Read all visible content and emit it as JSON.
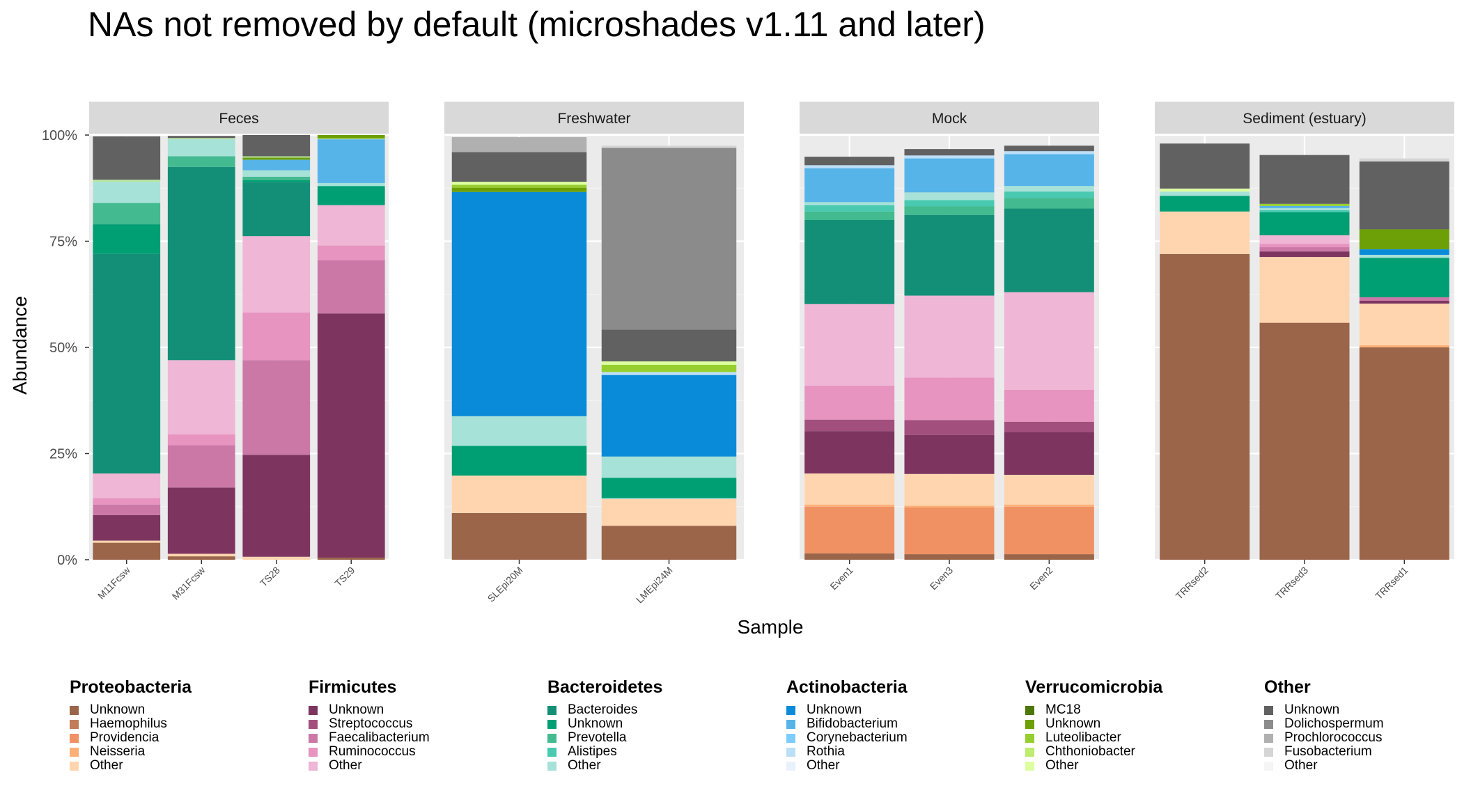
{
  "chart_data": {
    "type": "bar",
    "stacked": true,
    "title": "NAs not removed by default (microshades v1.11 and later)",
    "xlabel": "Sample",
    "ylabel": "Abundance",
    "ylim": [
      0,
      1
    ],
    "yticks": [
      "0%",
      "25%",
      "50%",
      "75%",
      "100%"
    ],
    "grid": true,
    "legend_position": "bottom",
    "facets": [
      {
        "label": "Feces",
        "samples": [
          {
            "name": "M11Fcsw",
            "segments": [
              {
                "c": "#9B6549",
                "v": 0.04
              },
              {
                "c": "#FFD5AF",
                "v": 0.005
              },
              {
                "c": "#7D3560",
                "v": 0.06
              },
              {
                "c": "#CB78A7",
                "v": 0.025
              },
              {
                "c": "#E794C0",
                "v": 0.015
              },
              {
                "c": "#EFB6D6",
                "v": 0.058
              },
              {
                "c": "#148F77",
                "v": 0.517
              },
              {
                "c": "#009E73",
                "v": 0.07
              },
              {
                "c": "#43BA8F",
                "v": 0.05
              },
              {
                "c": "#A7E2D8",
                "v": 0.05
              },
              {
                "c": "#B7E59F",
                "v": 0.005
              },
              {
                "c": "#616161",
                "v": 0.102
              }
            ]
          },
          {
            "name": "M31Fcsw",
            "segments": [
              {
                "c": "#9B6549",
                "v": 0.008
              },
              {
                "c": "#FFD5AF",
                "v": 0.006
              },
              {
                "c": "#7D3560",
                "v": 0.156
              },
              {
                "c": "#CB78A7",
                "v": 0.1
              },
              {
                "c": "#E794C0",
                "v": 0.025
              },
              {
                "c": "#EFB6D6",
                "v": 0.175
              },
              {
                "c": "#148F77",
                "v": 0.455
              },
              {
                "c": "#43BA8F",
                "v": 0.025
              },
              {
                "c": "#A7E2D8",
                "v": 0.04
              },
              {
                "c": "#B7E59F",
                "v": 0.003
              },
              {
                "c": "#616161",
                "v": 0.005
              }
            ]
          },
          {
            "name": "TS28",
            "segments": [
              {
                "c": "#FFD5AF",
                "v": 0.007
              },
              {
                "c": "#7D3560",
                "v": 0.24
              },
              {
                "c": "#CB78A7",
                "v": 0.223
              },
              {
                "c": "#E794C0",
                "v": 0.112
              },
              {
                "c": "#EFB6D6",
                "v": 0.18
              },
              {
                "c": "#148F77",
                "v": 0.127
              },
              {
                "c": "#009E73",
                "v": 0.005
              },
              {
                "c": "#43BA8F",
                "v": 0.008
              },
              {
                "c": "#A7E2D8",
                "v": 0.015
              },
              {
                "c": "#56B4E9",
                "v": 0.025
              },
              {
                "c": "#6D9F06",
                "v": 0.005
              },
              {
                "c": "#B7E59F",
                "v": 0.003
              },
              {
                "c": "#616161",
                "v": 0.05
              }
            ]
          },
          {
            "name": "TS29",
            "segments": [
              {
                "c": "#9B6549",
                "v": 0.005
              },
              {
                "c": "#7D3560",
                "v": 0.575
              },
              {
                "c": "#CB78A7",
                "v": 0.125
              },
              {
                "c": "#E794C0",
                "v": 0.035
              },
              {
                "c": "#EFB6D6",
                "v": 0.095
              },
              {
                "c": "#009E73",
                "v": 0.045
              },
              {
                "c": "#A7E2D8",
                "v": 0.007
              },
              {
                "c": "#56B4E9",
                "v": 0.103
              },
              {
                "c": "#B7E59F",
                "v": 0.002
              },
              {
                "c": "#6D9F06",
                "v": 0.008
              }
            ]
          }
        ]
      },
      {
        "label": "Freshwater",
        "samples": [
          {
            "name": "SLEpi20M",
            "segments": [
              {
                "c": "#9B6549",
                "v": 0.11
              },
              {
                "c": "#FFD5AF",
                "v": 0.088
              },
              {
                "c": "#009E73",
                "v": 0.07
              },
              {
                "c": "#A7E2D8",
                "v": 0.07
              },
              {
                "c": "#098BD9",
                "v": 0.528
              },
              {
                "c": "#6D9F06",
                "v": 0.01
              },
              {
                "c": "#97CE2F",
                "v": 0.007
              },
              {
                "c": "#DDFFA0",
                "v": 0.007
              },
              {
                "c": "#616161",
                "v": 0.07
              },
              {
                "c": "#B0B0B0",
                "v": 0.035
              }
            ]
          },
          {
            "name": "LMEpi24M",
            "segments": [
              {
                "c": "#9B6549",
                "v": 0.08
              },
              {
                "c": "#FFD5AF",
                "v": 0.063
              },
              {
                "c": "#A7E2D8",
                "v": 0.002
              },
              {
                "c": "#009E73",
                "v": 0.048
              },
              {
                "c": "#A7E2D8",
                "v": 0.05
              },
              {
                "c": "#098BD9",
                "v": 0.192
              },
              {
                "c": "#BCDFF8",
                "v": 0.007
              },
              {
                "c": "#97CE2F",
                "v": 0.017
              },
              {
                "c": "#DDFFA0",
                "v": 0.008
              },
              {
                "c": "#616161",
                "v": 0.075
              },
              {
                "c": "#8B8B8B",
                "v": 0.428
              },
              {
                "c": "#D5D5D5",
                "v": 0.005
              }
            ]
          }
        ]
      },
      {
        "label": "Mock",
        "samples": [
          {
            "name": "Even1",
            "segments": [
              {
                "c": "#9B6549",
                "v": 0.015
              },
              {
                "c": "#F09163",
                "v": 0.11
              },
              {
                "c": "#FCB076",
                "v": 0.005
              },
              {
                "c": "#FFD5AF",
                "v": 0.073
              },
              {
                "c": "#7D3560",
                "v": 0.1
              },
              {
                "c": "#A24F7D",
                "v": 0.027
              },
              {
                "c": "#E794C0",
                "v": 0.08
              },
              {
                "c": "#EFB6D6",
                "v": 0.192
              },
              {
                "c": "#148F77",
                "v": 0.198
              },
              {
                "c": "#43BA8F",
                "v": 0.02
              },
              {
                "c": "#48C9B0",
                "v": 0.015
              },
              {
                "c": "#A7E2D8",
                "v": 0.007
              },
              {
                "c": "#56B4E9",
                "v": 0.08
              },
              {
                "c": "#BCDFF8",
                "v": 0.007
              },
              {
                "c": "#616161",
                "v": 0.02
              }
            ]
          },
          {
            "name": "Even3",
            "segments": [
              {
                "c": "#9B6549",
                "v": 0.013
              },
              {
                "c": "#F09163",
                "v": 0.11
              },
              {
                "c": "#FCB076",
                "v": 0.004
              },
              {
                "c": "#FFD5AF",
                "v": 0.075
              },
              {
                "c": "#7D3560",
                "v": 0.092
              },
              {
                "c": "#A24F7D",
                "v": 0.035
              },
              {
                "c": "#E794C0",
                "v": 0.1
              },
              {
                "c": "#EFB6D6",
                "v": 0.193
              },
              {
                "c": "#148F77",
                "v": 0.19
              },
              {
                "c": "#43BA8F",
                "v": 0.02
              },
              {
                "c": "#48C9B0",
                "v": 0.015
              },
              {
                "c": "#A7E2D8",
                "v": 0.018
              },
              {
                "c": "#56B4E9",
                "v": 0.08
              },
              {
                "c": "#BCDFF8",
                "v": 0.007
              },
              {
                "c": "#616161",
                "v": 0.015
              }
            ]
          },
          {
            "name": "Even2",
            "segments": [
              {
                "c": "#9B6549",
                "v": 0.013
              },
              {
                "c": "#F09163",
                "v": 0.112
              },
              {
                "c": "#FCB076",
                "v": 0.005
              },
              {
                "c": "#FFD5AF",
                "v": 0.07
              },
              {
                "c": "#7D3560",
                "v": 0.1
              },
              {
                "c": "#A24F7D",
                "v": 0.025
              },
              {
                "c": "#E794C0",
                "v": 0.075
              },
              {
                "c": "#EFB6D6",
                "v": 0.23
              },
              {
                "c": "#148F77",
                "v": 0.197
              },
              {
                "c": "#43BA8F",
                "v": 0.025
              },
              {
                "c": "#48C9B0",
                "v": 0.015
              },
              {
                "c": "#A7E2D8",
                "v": 0.013
              },
              {
                "c": "#56B4E9",
                "v": 0.075
              },
              {
                "c": "#BCDFF8",
                "v": 0.007
              },
              {
                "c": "#616161",
                "v": 0.013
              }
            ]
          }
        ]
      },
      {
        "label": "Sediment (estuary)",
        "samples": [
          {
            "name": "TRRsed2",
            "segments": [
              {
                "c": "#9B6549",
                "v": 0.72
              },
              {
                "c": "#FFD5AF",
                "v": 0.1
              },
              {
                "c": "#009E73",
                "v": 0.037
              },
              {
                "c": "#A7E2D8",
                "v": 0.01
              },
              {
                "c": "#DDFFA0",
                "v": 0.007
              },
              {
                "c": "#616161",
                "v": 0.106
              }
            ]
          },
          {
            "name": "TRRsed3",
            "segments": [
              {
                "c": "#9B6549",
                "v": 0.558
              },
              {
                "c": "#FFD5AF",
                "v": 0.155
              },
              {
                "c": "#7D3560",
                "v": 0.013
              },
              {
                "c": "#CB78A7",
                "v": 0.01
              },
              {
                "c": "#E794C0",
                "v": 0.008
              },
              {
                "c": "#EFB6D6",
                "v": 0.02
              },
              {
                "c": "#009E73",
                "v": 0.054
              },
              {
                "c": "#48C9B0",
                "v": 0.005
              },
              {
                "c": "#A7E2D8",
                "v": 0.005
              },
              {
                "c": "#56B4E9",
                "v": 0.005
              },
              {
                "c": "#97CE2F",
                "v": 0.005
              },
              {
                "c": "#616161",
                "v": 0.115
              }
            ]
          },
          {
            "name": "TRRsed1",
            "segments": [
              {
                "c": "#9B6549",
                "v": 0.5
              },
              {
                "c": "#FCB076",
                "v": 0.005
              },
              {
                "c": "#FFD5AF",
                "v": 0.098
              },
              {
                "c": "#7D3560",
                "v": 0.007
              },
              {
                "c": "#CB78A7",
                "v": 0.008
              },
              {
                "c": "#009E73",
                "v": 0.093
              },
              {
                "c": "#A7E2D8",
                "v": 0.007
              },
              {
                "c": "#098BD9",
                "v": 0.013
              },
              {
                "c": "#6D9F06",
                "v": 0.047
              },
              {
                "c": "#616161",
                "v": 0.16
              },
              {
                "c": "#D5D5D5",
                "v": 0.007
              }
            ]
          }
        ]
      }
    ]
  },
  "legend": [
    {
      "title": "Proteobacteria",
      "items": [
        {
          "label": "Unknown",
          "color": "#9B6549"
        },
        {
          "label": "Haemophilus",
          "color": "#C17C5A"
        },
        {
          "label": "Providencia",
          "color": "#F09163"
        },
        {
          "label": "Neisseria",
          "color": "#FCB076"
        },
        {
          "label": "Other",
          "color": "#FFD5AF"
        }
      ]
    },
    {
      "title": "Firmicutes",
      "items": [
        {
          "label": "Unknown",
          "color": "#7D3560"
        },
        {
          "label": "Streptococcus",
          "color": "#A24F7D"
        },
        {
          "label": "Faecalibacterium",
          "color": "#CB78A7"
        },
        {
          "label": "Ruminococcus",
          "color": "#E794C0"
        },
        {
          "label": "Other",
          "color": "#EFB6D6"
        }
      ]
    },
    {
      "title": "Bacteroidetes",
      "items": [
        {
          "label": "Bacteroides",
          "color": "#148F77"
        },
        {
          "label": "Unknown",
          "color": "#009E73"
        },
        {
          "label": "Prevotella",
          "color": "#43BA8F"
        },
        {
          "label": "Alistipes",
          "color": "#48C9B0"
        },
        {
          "label": "Other",
          "color": "#A7E2D8"
        }
      ]
    },
    {
      "title": "Actinobacteria",
      "items": [
        {
          "label": "Unknown",
          "color": "#098BD9"
        },
        {
          "label": "Bifidobacterium",
          "color": "#56B4E9"
        },
        {
          "label": "Corynebacterium",
          "color": "#7DCCFF"
        },
        {
          "label": "Rothia",
          "color": "#BCDFF8"
        },
        {
          "label": "Other",
          "color": "#E9F2FC"
        }
      ]
    },
    {
      "title": "Verrucomicrobia",
      "items": [
        {
          "label": "MC18",
          "color": "#4E7705"
        },
        {
          "label": "Unknown",
          "color": "#6D9F06"
        },
        {
          "label": "Luteolibacter",
          "color": "#97CE2F"
        },
        {
          "label": "Chthoniobacter",
          "color": "#BDEC6F"
        },
        {
          "label": "Other",
          "color": "#DDFFA0"
        }
      ]
    },
    {
      "title": "Other",
      "items": [
        {
          "label": "Unknown",
          "color": "#616161"
        },
        {
          "label": "Dolichospermum",
          "color": "#8B8B8B"
        },
        {
          "label": "Prochlorococcus",
          "color": "#B0B0B0"
        },
        {
          "label": "Fusobacterium",
          "color": "#D5D5D5"
        },
        {
          "label": "Other",
          "color": "#F5F5F5"
        }
      ]
    }
  ]
}
